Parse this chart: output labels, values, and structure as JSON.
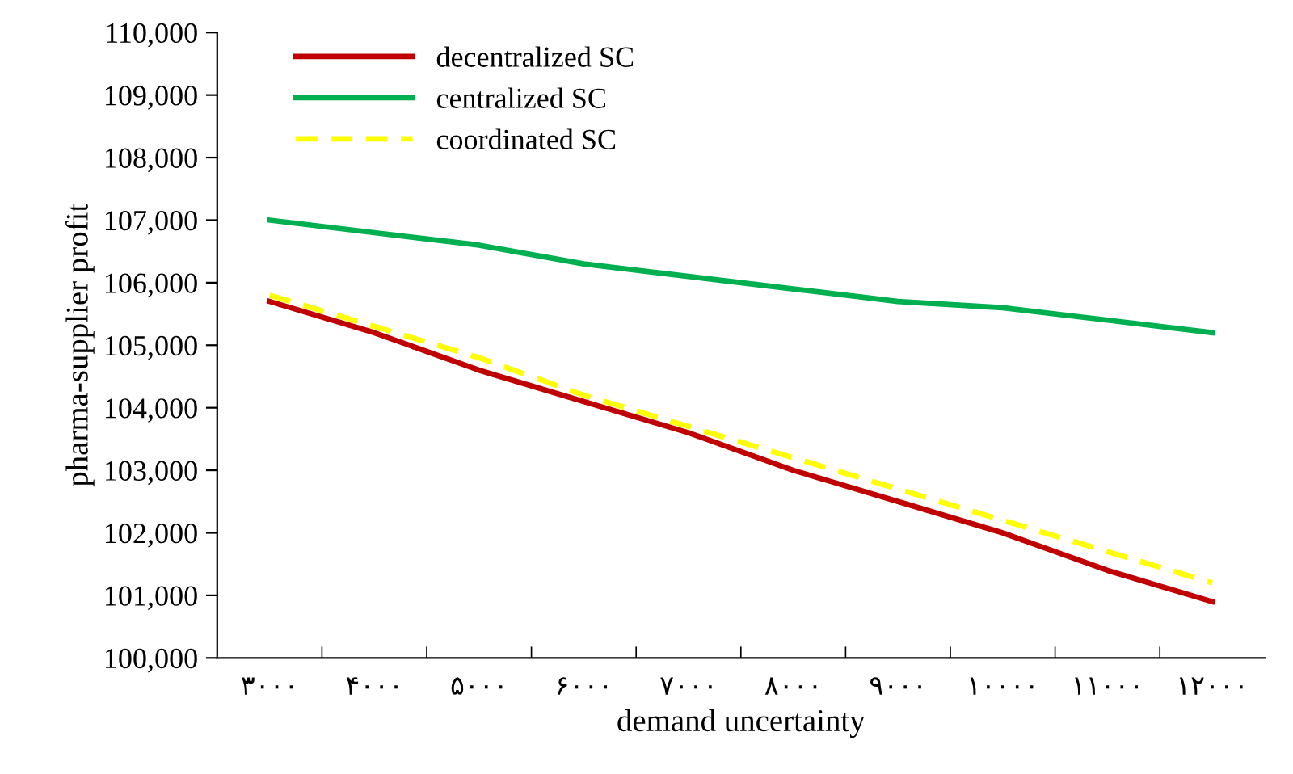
{
  "chart_data": {
    "type": "line",
    "xlabel": "demand uncertainty",
    "ylabel": "pharma-supplier profit",
    "categories": [
      "۳۰۰۰",
      "۴۰۰۰",
      "۵۰۰۰",
      "۶۰۰۰",
      "۷۰۰۰",
      "۸۰۰۰",
      "۹۰۰۰",
      "۱۰۰۰۰",
      "۱۱۰۰۰",
      "۱۲۰۰۰"
    ],
    "series": [
      {
        "name": "decentralized SC",
        "color": "#c00000",
        "line_style": "solid",
        "values": [
          105700,
          105200,
          104600,
          104100,
          103600,
          103000,
          102500,
          102000,
          101400,
          100900
        ]
      },
      {
        "name": "centralized SC",
        "color": "#00b050",
        "line_style": "solid",
        "values": [
          107000,
          106800,
          106600,
          106300,
          106100,
          105900,
          105700,
          105600,
          105400,
          105200
        ]
      },
      {
        "name": "coordinated SC",
        "color": "#ffff00",
        "line_style": "dashed",
        "values": [
          105800,
          105300,
          104800,
          104200,
          103700,
          103200,
          102700,
          102200,
          101700,
          101200
        ]
      }
    ],
    "ylim": [
      100000,
      110000
    ],
    "yticks": [
      {
        "value": 100000,
        "label": "100,000"
      },
      {
        "value": 101000,
        "label": "101,000"
      },
      {
        "value": 102000,
        "label": "102,000"
      },
      {
        "value": 103000,
        "label": "103,000"
      },
      {
        "value": 104000,
        "label": "104,000"
      },
      {
        "value": 105000,
        "label": "105,000"
      },
      {
        "value": 106000,
        "label": "106,000"
      },
      {
        "value": 107000,
        "label": "107,000"
      },
      {
        "value": 108000,
        "label": "108,000"
      },
      {
        "value": 109000,
        "label": "109,000"
      },
      {
        "value": 110000,
        "label": "110,000"
      }
    ],
    "grid": false,
    "legend": "top left",
    "marker": "none"
  }
}
